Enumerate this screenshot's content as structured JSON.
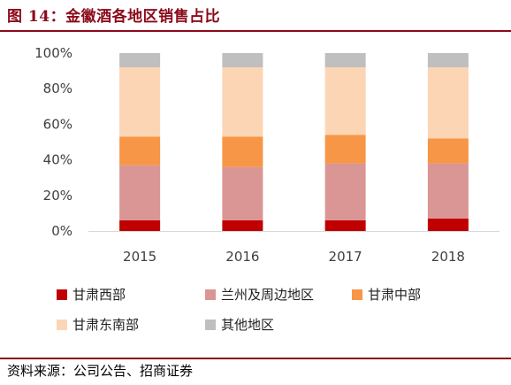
{
  "header": {
    "title": "图 14：金徽酒各地区销售占比"
  },
  "footer": {
    "source": "资料来源：公司公告、招商证券"
  },
  "chart_data": {
    "type": "bar",
    "stacked": true,
    "categories": [
      "2015",
      "2016",
      "2017",
      "2018"
    ],
    "y_ticks": [
      "0%",
      "20%",
      "40%",
      "60%",
      "80%",
      "100%"
    ],
    "ylim": [
      0,
      100
    ],
    "grid": false,
    "legend_position": "bottom",
    "series": [
      {
        "name": "甘肃西部",
        "color": "#C00000",
        "values": [
          6,
          6,
          6,
          7
        ]
      },
      {
        "name": "兰州及周边地区",
        "color": "#DA9694",
        "values": [
          31,
          30,
          32,
          31
        ]
      },
      {
        "name": "甘肃中部",
        "color": "#F79646",
        "values": [
          16,
          17,
          16,
          14
        ]
      },
      {
        "name": "甘肃东南部",
        "color": "#FCD5B4",
        "values": [
          39,
          39,
          38,
          40
        ]
      },
      {
        "name": "其他地区",
        "color": "#BFBFBF",
        "values": [
          8,
          8,
          8,
          8
        ]
      }
    ]
  }
}
